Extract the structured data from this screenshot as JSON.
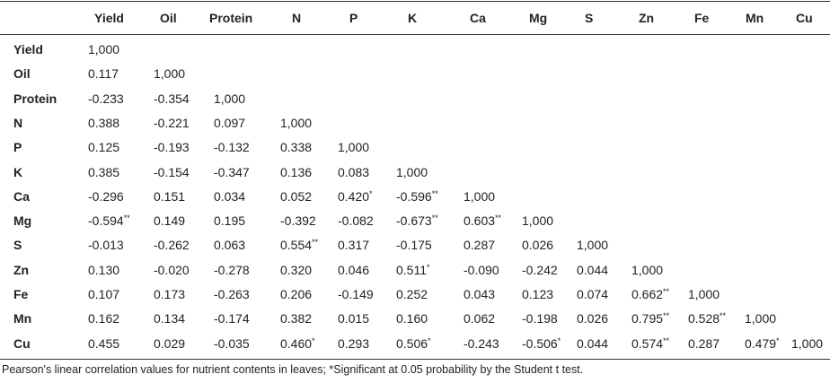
{
  "table": {
    "columns": [
      "Yield",
      "Oil",
      "Protein",
      "N",
      "P",
      "K",
      "Ca",
      "Mg",
      "S",
      "Zn",
      "Fe",
      "Mn",
      "Cu"
    ],
    "rows": [
      {
        "label": "Yield",
        "cells": [
          "1,000"
        ]
      },
      {
        "label": "Oil",
        "cells": [
          "0.117",
          "1,000"
        ]
      },
      {
        "label": "Protein",
        "cells": [
          "-0.233",
          "-0.354",
          "1,000"
        ]
      },
      {
        "label": "N",
        "cells": [
          "0.388",
          "-0.221",
          "0.097",
          "1,000"
        ]
      },
      {
        "label": "P",
        "cells": [
          "0.125",
          "-0.193",
          "-0.132",
          "0.338",
          "1,000"
        ]
      },
      {
        "label": "K",
        "cells": [
          "0.385",
          "-0.154",
          "-0.347",
          "0.136",
          "0.083",
          "1,000"
        ]
      },
      {
        "label": "Ca",
        "cells": [
          "-0.296",
          "0.151",
          "0.034",
          "0.052",
          "0.420*",
          "-0.596**",
          "1,000"
        ]
      },
      {
        "label": "Mg",
        "cells": [
          "-0.594**",
          "0.149",
          "0.195",
          "-0.392",
          "-0.082",
          "-0.673**",
          "0.603**",
          "1,000"
        ]
      },
      {
        "label": "S",
        "cells": [
          "-0.013",
          "-0.262",
          "0.063",
          "0.554**",
          "0.317",
          "-0.175",
          "0.287",
          "0.026",
          "1,000"
        ]
      },
      {
        "label": "Zn",
        "cells": [
          "0.130",
          "-0.020",
          "-0.278",
          "0.320",
          "0.046",
          "0.511*",
          "-0.090",
          "-0.242",
          "0.044",
          "1,000"
        ]
      },
      {
        "label": "Fe",
        "cells": [
          "0.107",
          "0.173",
          "-0.263",
          "0.206",
          "-0.149",
          "0.252",
          "0.043",
          "0.123",
          "0.074",
          "0.662**",
          "1,000"
        ]
      },
      {
        "label": "Mn",
        "cells": [
          "0.162",
          "0.134",
          "-0.174",
          "0.382",
          "0.015",
          "0.160",
          "0.062",
          "-0.198",
          "0.026",
          "0.795**",
          "0.528**",
          "1,000"
        ]
      },
      {
        "label": "Cu",
        "cells": [
          "0.455",
          "0.029",
          "-0.035",
          "0.460*",
          "0.293",
          "0.506*",
          "-0.243",
          "-0.506*",
          "0.044",
          "0.574**",
          "0.287",
          "0.479*",
          "1,000"
        ]
      }
    ]
  },
  "caption": "Pearson's linear correlation values for nutrient contents in leaves; *Significant at 0.05 probability by the Student t test."
}
